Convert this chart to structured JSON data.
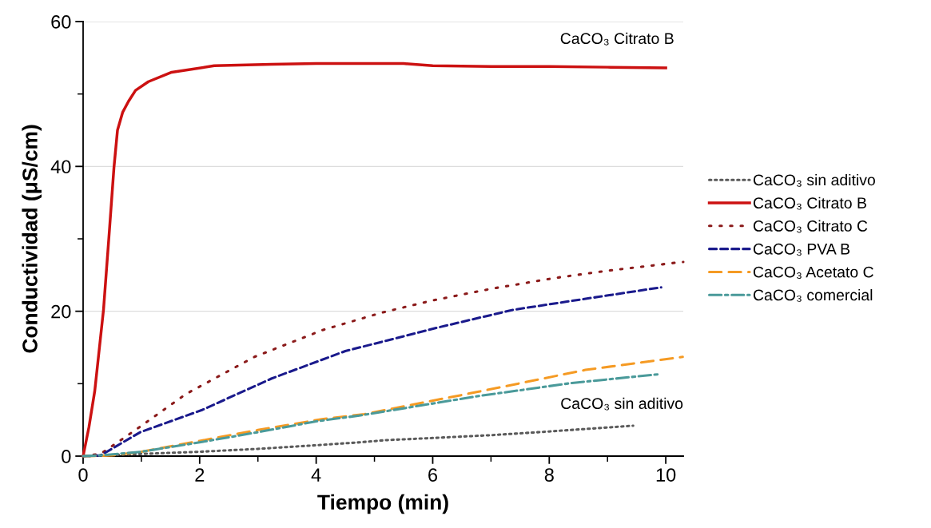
{
  "chart_data": {
    "type": "line",
    "xlabel": "Tiempo (min)",
    "ylabel": "Conductividad (μS/cm)",
    "xlim": [
      0,
      10.3
    ],
    "xticks": [
      0,
      2,
      4,
      6,
      8,
      10
    ],
    "ylim": [
      0,
      60
    ],
    "yticks": [
      0,
      20,
      40,
      60
    ],
    "grid": "y",
    "legend": "right",
    "marker": "none",
    "series": [
      {
        "name": "CaCO₃ sin aditivo",
        "color": "#5a5a5a",
        "line_style": "dotted",
        "x": [
          0,
          0.3,
          1,
          2,
          3,
          4,
          4.74,
          5.19,
          6,
          7.02,
          8,
          9.44
        ],
        "values": [
          0,
          0.1,
          0.3,
          0.6,
          1.0,
          1.5,
          1.9,
          2.2,
          2.5,
          2.9,
          3.4,
          4.2
        ]
      },
      {
        "name": "CaCO₃ Citrato B",
        "color": "#cc1111",
        "line_style": "solid",
        "x": [
          0,
          0.1,
          0.2,
          0.35,
          0.45,
          0.53,
          0.59,
          0.68,
          0.78,
          0.9,
          1.12,
          1.52,
          2.25,
          3.23,
          4,
          5,
          5.5,
          6,
          7,
          8,
          9,
          10
        ],
        "values": [
          0,
          4,
          9,
          20.2,
          31,
          39.9,
          45,
          47.5,
          49,
          50.5,
          51.7,
          53,
          53.9,
          54.1,
          54.2,
          54.2,
          54.2,
          53.9,
          53.8,
          53.8,
          53.7,
          53.6
        ]
      },
      {
        "name": "CaCO₃ Citrato C",
        "color": "#8b1a1a",
        "line_style": "dotted",
        "x": [
          0,
          0.3,
          0.88,
          1.77,
          2.94,
          4.11,
          5.12,
          6.0,
          7,
          8.1,
          9,
          10.17,
          10.3
        ],
        "values": [
          0,
          0.3,
          3.5,
          8.6,
          13.7,
          17.4,
          19.8,
          21.5,
          23.1,
          24.6,
          25.6,
          26.7,
          26.8
        ]
      },
      {
        "name": "CaCO₃ PVA B",
        "color": "#1a1a8c",
        "line_style": "dashed",
        "x": [
          0,
          0.3,
          0.98,
          2.05,
          3.23,
          4.5,
          5.38,
          6.06,
          7.38,
          8.85,
          9.92
        ],
        "values": [
          0,
          0.1,
          3.3,
          6.4,
          10.7,
          14.5,
          16.3,
          17.7,
          20.2,
          22,
          23.3
        ]
      },
      {
        "name": "CaCO₃ Acetato C",
        "color": "#f59a23",
        "line_style": "longdash",
        "x": [
          0,
          0.5,
          1,
          2,
          3,
          4.1,
          4.83,
          6.79,
          8.62,
          10.29
        ],
        "values": [
          0,
          0.1,
          0.6,
          2.1,
          3.6,
          5.1,
          5.8,
          8.9,
          11.9,
          13.7
        ]
      },
      {
        "name": "CaCO₃ comercial",
        "color": "#4a9a9a",
        "line_style": "dashdot",
        "x": [
          0,
          0.3,
          1,
          2,
          3,
          4,
          4.74,
          6.79,
          8.39,
          9.88
        ],
        "values": [
          0,
          0.1,
          0.6,
          1.9,
          3.3,
          4.8,
          5.6,
          8.3,
          10.1,
          11.3
        ]
      }
    ],
    "annotations": [
      "CaCO₃ Citrato B",
      "CaCO₃ sin aditivo"
    ]
  }
}
